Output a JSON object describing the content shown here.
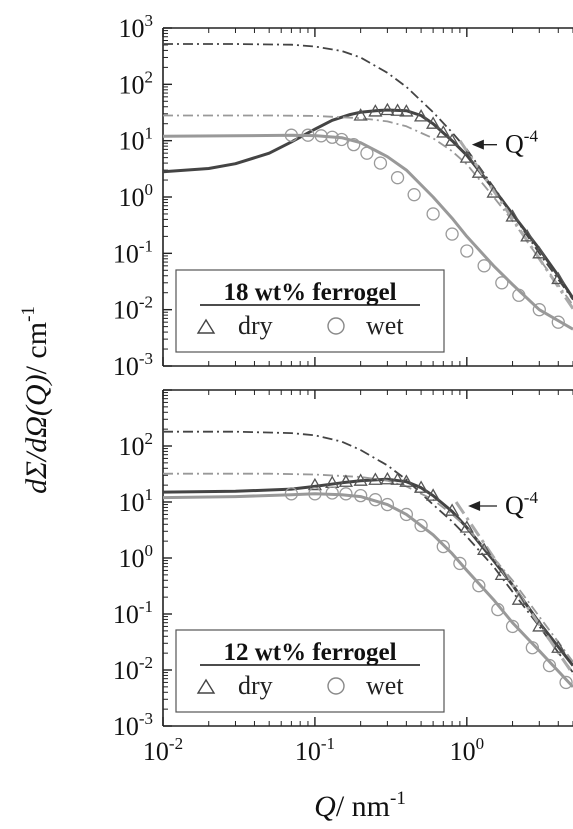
{
  "chart_data": [
    {
      "type": "scatter",
      "panel": "top",
      "legend_title": "18 wt% ferrogel",
      "legend_position": "bottom-left",
      "annotation": {
        "text": "Q",
        "exponent": "-4"
      },
      "xscale": "log",
      "yscale": "log",
      "xlim": [
        0.01,
        5
      ],
      "ylim": [
        0.001,
        1000
      ],
      "x_ticks": [
        0.01,
        0.1,
        1
      ],
      "y_ticks": [
        0.001,
        0.01,
        0.1,
        1,
        10,
        100,
        1000
      ],
      "series": [
        {
          "name": "dry",
          "marker": "triangle",
          "color": "#555555",
          "x": [
            0.2,
            0.25,
            0.3,
            0.35,
            0.4,
            0.5,
            0.6,
            0.7,
            0.8,
            1.0,
            1.2,
            1.5,
            2.0,
            2.5,
            3.0,
            4.0
          ],
          "y": [
            28,
            33,
            35,
            34,
            33,
            27,
            20,
            14,
            10,
            5,
            2.7,
            1.2,
            0.45,
            0.2,
            0.1,
            0.035
          ]
        },
        {
          "name": "wet",
          "marker": "circle",
          "color": "#9a9a9a",
          "x": [
            0.07,
            0.09,
            0.11,
            0.13,
            0.15,
            0.18,
            0.22,
            0.27,
            0.35,
            0.45,
            0.6,
            0.8,
            1.0,
            1.3,
            1.7,
            2.2,
            3.0,
            4.0
          ],
          "y": [
            12.5,
            12.5,
            12.2,
            11.5,
            10.5,
            8.5,
            6.0,
            4.0,
            2.2,
            1.1,
            0.5,
            0.22,
            0.11,
            0.06,
            0.03,
            0.018,
            0.01,
            0.006
          ]
        }
      ],
      "fits": [
        {
          "style": "solid",
          "color": "#444444",
          "x": [
            0.01,
            0.02,
            0.03,
            0.05,
            0.07,
            0.1,
            0.13,
            0.17,
            0.2,
            0.25,
            0.3,
            0.4,
            0.5,
            0.6,
            0.8,
            1.0,
            1.5,
            2.0,
            3.0,
            4.0,
            5.0
          ],
          "y": [
            2.8,
            3.2,
            3.9,
            6.0,
            9.5,
            16,
            23,
            29,
            32,
            34,
            35,
            34,
            28,
            20,
            10,
            5.5,
            1.4,
            0.5,
            0.12,
            0.04,
            0.016
          ]
        },
        {
          "style": "solid",
          "color": "#999999",
          "x": [
            0.01,
            0.03,
            0.07,
            0.1,
            0.15,
            0.2,
            0.3,
            0.4,
            0.6,
            0.8,
            1.0,
            1.5,
            2.0,
            3.0,
            5.0
          ],
          "y": [
            12,
            12.2,
            12.5,
            12.3,
            11.3,
            9.2,
            5.2,
            3.0,
            1.0,
            0.42,
            0.2,
            0.06,
            0.028,
            0.01,
            0.0045
          ]
        },
        {
          "style": "dashdot",
          "color": "#444444",
          "x": [
            0.01,
            0.03,
            0.07,
            0.1,
            0.15,
            0.2,
            0.3,
            0.4,
            0.6,
            0.8,
            1.0,
            1.5,
            2.0,
            3.0,
            5.0
          ],
          "y": [
            520,
            520,
            505,
            470,
            390,
            300,
            160,
            90,
            32,
            14,
            7,
            1.5,
            0.5,
            0.1,
            0.015
          ]
        },
        {
          "style": "dashdot",
          "color": "#999999",
          "x": [
            0.01,
            0.05,
            0.1,
            0.2,
            0.3,
            0.4,
            0.6,
            0.8,
            1.0,
            1.5,
            2.0,
            3.0,
            5.0
          ],
          "y": [
            28,
            28,
            27.5,
            25,
            22,
            18,
            11,
            6.5,
            3.8,
            1.0,
            0.38,
            0.08,
            0.012
          ]
        },
        {
          "style": "dashdot",
          "color": "#aaaaaa",
          "label": "Q^-4",
          "x": [
            0.9,
            1.5,
            2.5,
            5.0
          ],
          "y": [
            10,
            1.3,
            0.167,
            0.0104
          ]
        }
      ]
    },
    {
      "type": "scatter",
      "panel": "bottom",
      "legend_title": "12 wt% ferrogel",
      "legend_position": "bottom-left",
      "annotation": {
        "text": "Q",
        "exponent": "-4"
      },
      "xscale": "log",
      "yscale": "log",
      "xlim": [
        0.01,
        5
      ],
      "ylim": [
        0.001,
        1000
      ],
      "x_ticks": [
        0.01,
        0.1,
        1
      ],
      "y_ticks": [
        0.001,
        0.01,
        0.1,
        1,
        10,
        100
      ],
      "xlabel": "Q/ nm-1",
      "series": [
        {
          "name": "dry",
          "marker": "triangle",
          "color": "#555555",
          "x": [
            0.1,
            0.13,
            0.16,
            0.2,
            0.25,
            0.3,
            0.35,
            0.4,
            0.5,
            0.6,
            0.8,
            1.0,
            1.3,
            1.7,
            2.2,
            3.0,
            4.0
          ],
          "y": [
            20,
            22,
            23,
            24,
            25,
            25.5,
            25,
            23,
            18,
            13,
            7,
            3.5,
            1.4,
            0.5,
            0.18,
            0.06,
            0.025
          ]
        },
        {
          "name": "wet",
          "marker": "circle",
          "color": "#9a9a9a",
          "x": [
            0.07,
            0.1,
            0.13,
            0.16,
            0.2,
            0.25,
            0.3,
            0.4,
            0.5,
            0.7,
            0.9,
            1.2,
            1.6,
            2.0,
            2.7,
            3.5,
            4.5
          ],
          "y": [
            14,
            14,
            14.5,
            14,
            13,
            11,
            9,
            6,
            3.8,
            1.6,
            0.8,
            0.32,
            0.12,
            0.06,
            0.025,
            0.012,
            0.006
          ]
        }
      ],
      "fits": [
        {
          "style": "solid",
          "color": "#444444",
          "x": [
            0.01,
            0.03,
            0.07,
            0.1,
            0.15,
            0.2,
            0.3,
            0.4,
            0.5,
            0.6,
            0.8,
            1.0,
            1.5,
            2.0,
            3.0,
            5.0
          ],
          "y": [
            15,
            15.5,
            17,
            19,
            22,
            24,
            25.5,
            23,
            18,
            13,
            6.8,
            3.5,
            0.9,
            0.33,
            0.07,
            0.012
          ]
        },
        {
          "style": "solid",
          "color": "#999999",
          "x": [
            0.01,
            0.03,
            0.07,
            0.1,
            0.15,
            0.2,
            0.3,
            0.4,
            0.6,
            0.8,
            1.0,
            1.5,
            2.0,
            3.0,
            5.0
          ],
          "y": [
            12,
            12.5,
            13.5,
            14,
            13.5,
            12.5,
            9,
            6,
            2.6,
            1.2,
            0.6,
            0.18,
            0.07,
            0.022,
            0.005
          ]
        },
        {
          "style": "dashdot",
          "color": "#444444",
          "x": [
            0.01,
            0.03,
            0.07,
            0.1,
            0.15,
            0.2,
            0.3,
            0.4,
            0.6,
            0.8,
            1.0,
            1.5,
            2.0,
            3.0,
            5.0
          ],
          "y": [
            180,
            180,
            170,
            155,
            120,
            85,
            45,
            25,
            9,
            4.5,
            2.4,
            0.7,
            0.25,
            0.06,
            0.009
          ]
        },
        {
          "style": "dashdot",
          "color": "#999999",
          "x": [
            0.01,
            0.05,
            0.1,
            0.2,
            0.3,
            0.4,
            0.6,
            0.8,
            1.0,
            1.5,
            2.0,
            3.0,
            5.0
          ],
          "y": [
            32,
            32,
            31,
            28,
            24,
            19,
            11,
            6,
            3.5,
            1.0,
            0.4,
            0.09,
            0.014
          ]
        },
        {
          "style": "dashdot",
          "color": "#aaaaaa",
          "label": "Q^-4",
          "x": [
            0.85,
            1.5,
            2.5,
            5.0
          ],
          "y": [
            10,
            1.03,
            0.134,
            0.0084
          ]
        }
      ]
    }
  ],
  "shared_ylabel": "dΣ/dΩ(Q)/ cm-1"
}
